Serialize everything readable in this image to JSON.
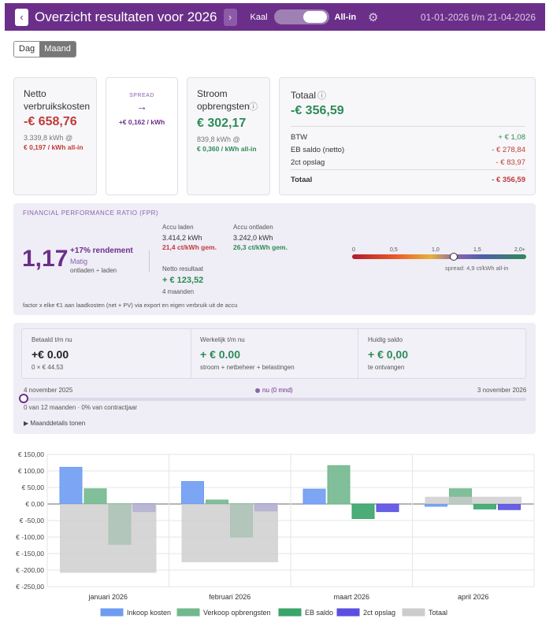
{
  "header": {
    "prev": "‹",
    "title": "Overzicht resultaten voor 2026",
    "next": "›",
    "toggle_left": "Kaal",
    "toggle_right": "All-in",
    "gear": "⚙",
    "date_range": "01-01-2026 t/m 21-04-2026"
  },
  "segment": {
    "dag": "Dag",
    "maand": "Maand",
    "selected": "Maand"
  },
  "netto": {
    "title": "Netto verbruikskosten",
    "value": "-€ 658,76",
    "kwh": "3.339,8 kWh @",
    "rate": "€ 0,197 / kWh all-in"
  },
  "spread": {
    "label": "SPREAD",
    "arrow": "→",
    "value": "+€ 0,162 / kWh"
  },
  "stroom": {
    "title": "Stroom opbrengsten",
    "info": "ⓘ",
    "value": "€ 302,17",
    "kwh": "839,8 kWh @",
    "rate": "€ 0,360 / kWh all-in"
  },
  "totaal": {
    "title": "Totaal",
    "info": "ⓘ",
    "value": "-€ 356,59",
    "rows": [
      {
        "label": "BTW",
        "value": "+ € 1,08"
      },
      {
        "label": "EB saldo (netto)",
        "value": "- € 278,84"
      },
      {
        "label": "2ct opslag",
        "value": "- € 83,97"
      },
      {
        "label": "Totaal",
        "value": "- € 356,59"
      }
    ]
  },
  "fpr": {
    "title": "FINANCIAL PERFORMANCE RATIO (FPR)",
    "ratio": "1,17",
    "rendement": "+17% rendement",
    "rating": "Matig",
    "formula": "ontladen ÷ laden",
    "laden_label": "Accu laden",
    "laden_kwh": "3.414,2 kWh",
    "laden_price": "21,4 ct/kWh gem.",
    "ontladen_label": "Accu ontladen",
    "ontladen_kwh": "3.242,0 kWh",
    "ontladen_price": "26,3 ct/kWh gem.",
    "netto_label": "Netto resultaat",
    "netto_value": "+ € 123,52",
    "months": "4 maanden",
    "scale_ticks": [
      "0",
      "0,5",
      "1,0",
      "1,5",
      "2,0+"
    ],
    "scale_value": 1.17,
    "spread_note": "spread: 4,9 ct/kWh all-in",
    "footnote": "factor x elke €1 aan laadkosten (net + PV) via export en eigen verbruik uit de accu"
  },
  "saldo": {
    "betaald_label": "Betaald t/m nu",
    "betaald_value": "+€ 0.00",
    "betaald_sub": "0 × € 44.53",
    "werkelijk_label": "Werkelijk t/m nu",
    "werkelijk_value": "+ € 0.00",
    "werkelijk_sub": "stroom + netbeheer + belastingen",
    "huidig_label": "Huidig saldo",
    "huidig_value": "+ € 0,00",
    "huidig_sub": "te ontvangen",
    "start_date": "4 november 2025",
    "now_label": "nu (0 mnd)",
    "end_date": "3 november 2026",
    "progress_text": "0 van 12 maanden · 0% van contractjaar",
    "progress": 0,
    "details_toggle": "▶ Maanddetails tonen"
  },
  "chart_data": {
    "type": "bar",
    "categories": [
      "januari 2026",
      "februari 2026",
      "maart 2026",
      "april 2026"
    ],
    "ylim": [
      -250,
      150
    ],
    "yticks": [
      150,
      100,
      50,
      0,
      -50,
      -100,
      -150,
      -200,
      -250
    ],
    "ytick_labels": [
      "€ 150,00",
      "€ 100,00",
      "€ 50,00",
      "€ 0,00",
      "€ -50,00",
      "€ -100,00",
      "€ -150,00",
      "€ -200,00",
      "€ -250,00"
    ],
    "series": [
      {
        "name": "Inkoop kosten",
        "color": "#6e9cf2",
        "values": [
          111,
          68,
          45,
          -7
        ]
      },
      {
        "name": "Verkoop opbrengsten",
        "color": "#72b88e",
        "values": [
          46,
          12,
          116,
          46
        ]
      },
      {
        "name": "EB saldo",
        "color": "#3aa46a",
        "values": [
          -122,
          -100,
          -44,
          -15
        ]
      },
      {
        "name": "2ct opslag",
        "color": "#5a4fe0",
        "values": [
          -23,
          -21,
          -23,
          -17
        ]
      },
      {
        "name": "Totaal",
        "color": "#cccccc",
        "values": [
          -208,
          -176,
          0,
          22
        ]
      }
    ],
    "grid": true,
    "legend": "bottom"
  }
}
